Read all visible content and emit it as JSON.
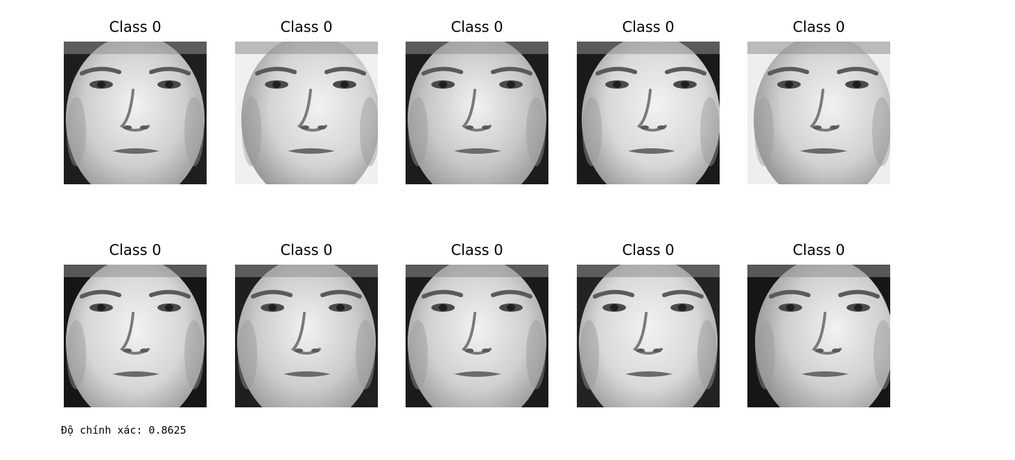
{
  "faces": [
    {
      "title": "Class 0",
      "bg_tone": "#1e1e1e",
      "skin_tone": "#cfcfcf",
      "turn": 0
    },
    {
      "title": "Class 0",
      "bg_tone": "#f0f0f0",
      "skin_tone": "#d4d4d4",
      "turn": 6
    },
    {
      "title": "Class 0",
      "bg_tone": "#1c1c1c",
      "skin_tone": "#c8c8c8",
      "turn": 0
    },
    {
      "title": "Class 0",
      "bg_tone": "#1a1a1a",
      "skin_tone": "#d8d8d8",
      "turn": 4
    },
    {
      "title": "Class 0",
      "bg_tone": "#eeeeee",
      "skin_tone": "#d2d2d2",
      "turn": 6
    },
    {
      "title": "Class 0",
      "bg_tone": "#161616",
      "skin_tone": "#d6d6d6",
      "turn": 0
    },
    {
      "title": "Class 0",
      "bg_tone": "#1f1f1f",
      "skin_tone": "#cccccc",
      "turn": 0
    },
    {
      "title": "Class 0",
      "bg_tone": "#1b1b1b",
      "skin_tone": "#d0d0d0",
      "turn": 0
    },
    {
      "title": "Class 0",
      "bg_tone": "#232323",
      "skin_tone": "#d8d8d8",
      "turn": 0
    },
    {
      "title": "Class 0",
      "bg_tone": "#161616",
      "skin_tone": "#cfcfcf",
      "turn": 8
    }
  ],
  "accuracy_text": "Độ chính xác: 0.8625",
  "colors": {
    "background": "#ffffff",
    "text": "#000000"
  }
}
